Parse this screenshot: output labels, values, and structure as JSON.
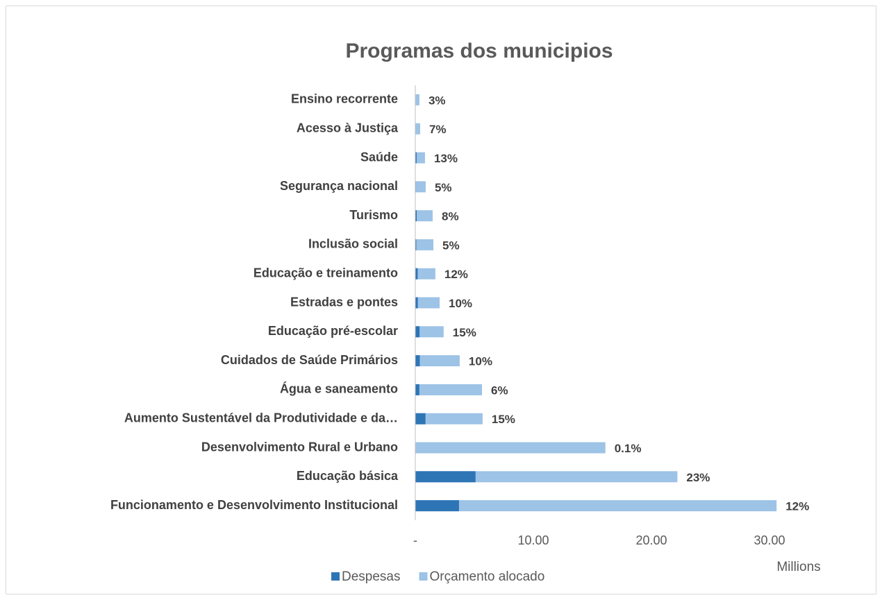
{
  "chart_data": {
    "type": "bar",
    "orientation": "horizontal",
    "overlap": true,
    "title": "Programas dos municipios",
    "categories": [
      "Ensino recorrente",
      "Acesso à Justiça",
      "Saúde",
      "Segurança nacional",
      "Turismo",
      "Inclusão social",
      "Educação e treinamento",
      "Estradas e pontes",
      "Educação pré-escolar",
      "Cuidados de Saúde Primários",
      "Água e saneamento",
      "Aumento Sustentável da Produtividade e da…",
      "Desenvolvimento Rural e Urbano",
      "Educação básica",
      "Funcionamento e Desenvolvimento Institucional"
    ],
    "series": [
      {
        "name": "Orçamento alocado",
        "color": "#9dc3e6",
        "values": [
          0.35,
          0.41,
          0.82,
          0.88,
          1.47,
          1.53,
          1.7,
          2.06,
          2.4,
          3.76,
          5.65,
          5.7,
          16.1,
          22.2,
          30.6
        ]
      },
      {
        "name": "Despesas",
        "color": "#2e75b6",
        "values": [
          0.01,
          0.03,
          0.11,
          0.04,
          0.12,
          0.08,
          0.2,
          0.21,
          0.36,
          0.38,
          0.34,
          0.86,
          0.016,
          5.1,
          3.7
        ]
      }
    ],
    "data_labels": [
      "3%",
      "7%",
      "13%",
      "5%",
      "8%",
      "5%",
      "12%",
      "10%",
      "15%",
      "10%",
      "6%",
      "15%",
      "0.1%",
      "23%",
      "12%"
    ],
    "xlim": [
      0,
      35
    ],
    "xticks": [
      {
        "value": 0,
        "label": "-"
      },
      {
        "value": 10,
        "label": "10.00"
      },
      {
        "value": 20,
        "label": "20.00"
      },
      {
        "value": 30,
        "label": "30.00"
      }
    ],
    "x_unit_label": "Millions",
    "legend": [
      "Despesas",
      "Orçamento alocado"
    ],
    "legend_position": "bottom"
  }
}
